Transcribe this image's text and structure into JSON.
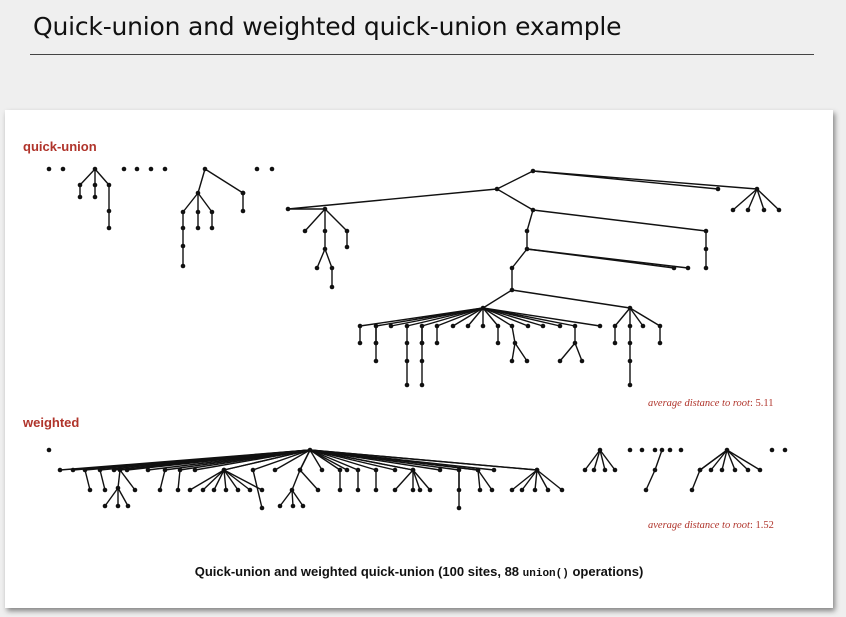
{
  "slide": {
    "title": "Quick-union and weighted quick-union example"
  },
  "quick_union": {
    "label": "quick-union",
    "stat_label": "average distance to root",
    "stat_value": "5.11"
  },
  "weighted": {
    "label": "weighted",
    "stat_label": "average distance to root",
    "stat_value": "1.52"
  },
  "caption": {
    "text_before": "Quick-union and weighted quick-union (100 sites, 88 ",
    "code": "union()",
    "text_after": " operations)"
  },
  "colors": {
    "label_red": "#b0342b",
    "stat_red": "#b0342b",
    "ink": "#111111"
  }
}
